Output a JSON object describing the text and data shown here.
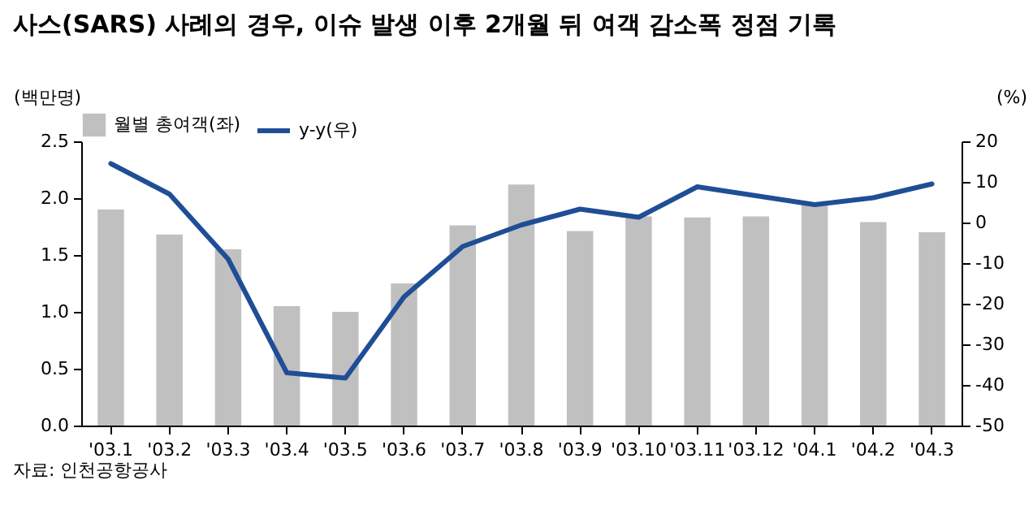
{
  "chart_data": {
    "type": "bar",
    "title": "사스(SARS) 사례의 경우, 이슈 발생 이후 2개월 뒤 여객 감소폭 정점 기록",
    "ylabel": "(백만명)",
    "y2label": "(%)",
    "annotations": [
      "자료: 인천공항공사"
    ],
    "categories": [
      "'03.1",
      "'03.2",
      "'03.3",
      "'03.4",
      "'03.5",
      "'03.6",
      "'03.7",
      "'03.8",
      "'03.9",
      "'03.10",
      "'03.11",
      "'03.12",
      "'04.1",
      "'04.2",
      "'04.3"
    ],
    "series": [
      {
        "name": "월별 총여객(좌)",
        "color": "#c0c0c0",
        "values": [
          1.9,
          1.68,
          1.55,
          1.05,
          1.0,
          1.25,
          1.76,
          2.12,
          1.71,
          1.84,
          1.83,
          1.84,
          1.95,
          1.79,
          1.7
        ]
      },
      {
        "name": "y-y(우)",
        "type": "line",
        "axis": "y2",
        "color": "#1f4e96",
        "values": [
          14.5,
          7.0,
          -9.0,
          -37.0,
          -38.3,
          -18.3,
          -5.9,
          -0.6,
          3.3,
          1.3,
          8.8,
          6.6,
          4.4,
          6.1,
          9.5
        ]
      }
    ],
    "ylim": [
      0,
      2.5
    ],
    "yticks": [
      {
        "value": 0,
        "label": "0.0"
      },
      0.5,
      {
        "value": 1,
        "label": "1.0"
      },
      1.5,
      {
        "value": 2,
        "label": "2.0"
      },
      2.5
    ],
    "y2lim": [
      -50,
      20
    ],
    "y2ticks": [
      -50,
      -40,
      -30,
      -20,
      -10,
      0,
      10,
      20
    ],
    "legend": "top",
    "grid": false
  }
}
